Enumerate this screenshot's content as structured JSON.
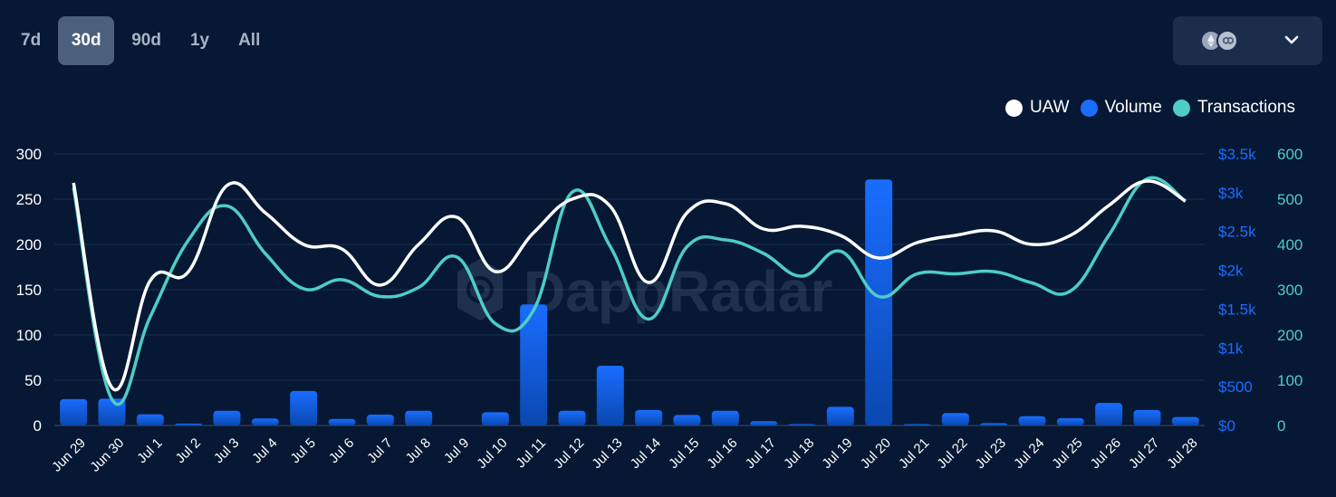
{
  "tabs": [
    {
      "label": "7d",
      "active": false
    },
    {
      "label": "30d",
      "active": true
    },
    {
      "label": "90d",
      "active": false
    },
    {
      "label": "1y",
      "active": false
    },
    {
      "label": "All",
      "active": false
    }
  ],
  "chain_selector": {
    "icons": [
      "ethereum-icon",
      "polygon-icon"
    ]
  },
  "watermark": "DappRadar",
  "legend": [
    {
      "label": "UAW",
      "color": "#ffffff"
    },
    {
      "label": "Volume",
      "color": "#1a6dff"
    },
    {
      "label": "Transactions",
      "color": "#4ecdc4"
    }
  ],
  "chart_data": {
    "type": "bar+line",
    "categories": [
      "Jun 29",
      "Jun 30",
      "Jul 1",
      "Jul 2",
      "Jul 3",
      "Jul 4",
      "Jul 5",
      "Jul 6",
      "Jul 7",
      "Jul 8",
      "Jul 9",
      "Jul 10",
      "Jul 11",
      "Jul 12",
      "Jul 13",
      "Jul 14",
      "Jul 15",
      "Jul 16",
      "Jul 17",
      "Jul 18",
      "Jul 19",
      "Jul 20",
      "Jul 21",
      "Jul 22",
      "Jul 23",
      "Jul 24",
      "Jul 25",
      "Jul 26",
      "Jul 27",
      "Jul 28"
    ],
    "left_axis": {
      "ticks": [
        "300",
        "250",
        "200",
        "150",
        "100",
        "50",
        "0"
      ],
      "range": [
        0,
        300
      ]
    },
    "volume_axis": {
      "ticks": [
        "$3.5k",
        "$3k",
        "$2.5k",
        "$2k",
        "$1.5k",
        "$1k",
        "$500",
        "$0"
      ],
      "range": [
        0,
        3500
      ],
      "color": "#1a6dff"
    },
    "tx_axis": {
      "ticks": [
        "600",
        "500",
        "400",
        "300",
        "200",
        "100",
        "0"
      ],
      "range": [
        0,
        600
      ],
      "color": "#4ecdc4"
    },
    "series": [
      {
        "name": "UAW",
        "type": "line",
        "axis": "left",
        "color": "#ffffff",
        "values": [
          268,
          42,
          160,
          170,
          265,
          235,
          200,
          195,
          155,
          200,
          230,
          170,
          213,
          250,
          242,
          158,
          235,
          245,
          217,
          220,
          210,
          185,
          202,
          210,
          215,
          200,
          210,
          243,
          270,
          248
        ]
      },
      {
        "name": "Volume",
        "type": "bar",
        "axis": "volume",
        "color": "#1a6dff",
        "values": [
          340,
          345,
          145,
          25,
          190,
          90,
          445,
          85,
          140,
          190,
          0,
          170,
          1560,
          190,
          770,
          200,
          135,
          190,
          55,
          15,
          240,
          3170,
          15,
          160,
          30,
          120,
          95,
          290,
          200,
          110
        ]
      },
      {
        "name": "Transactions",
        "type": "line",
        "axis": "tx",
        "color": "#4ecdc4",
        "values": [
          525,
          58,
          240,
          410,
          485,
          380,
          302,
          322,
          285,
          305,
          372,
          225,
          255,
          515,
          395,
          235,
          395,
          410,
          380,
          330,
          385,
          285,
          335,
          335,
          340,
          315,
          297,
          420,
          545,
          495
        ]
      }
    ]
  }
}
